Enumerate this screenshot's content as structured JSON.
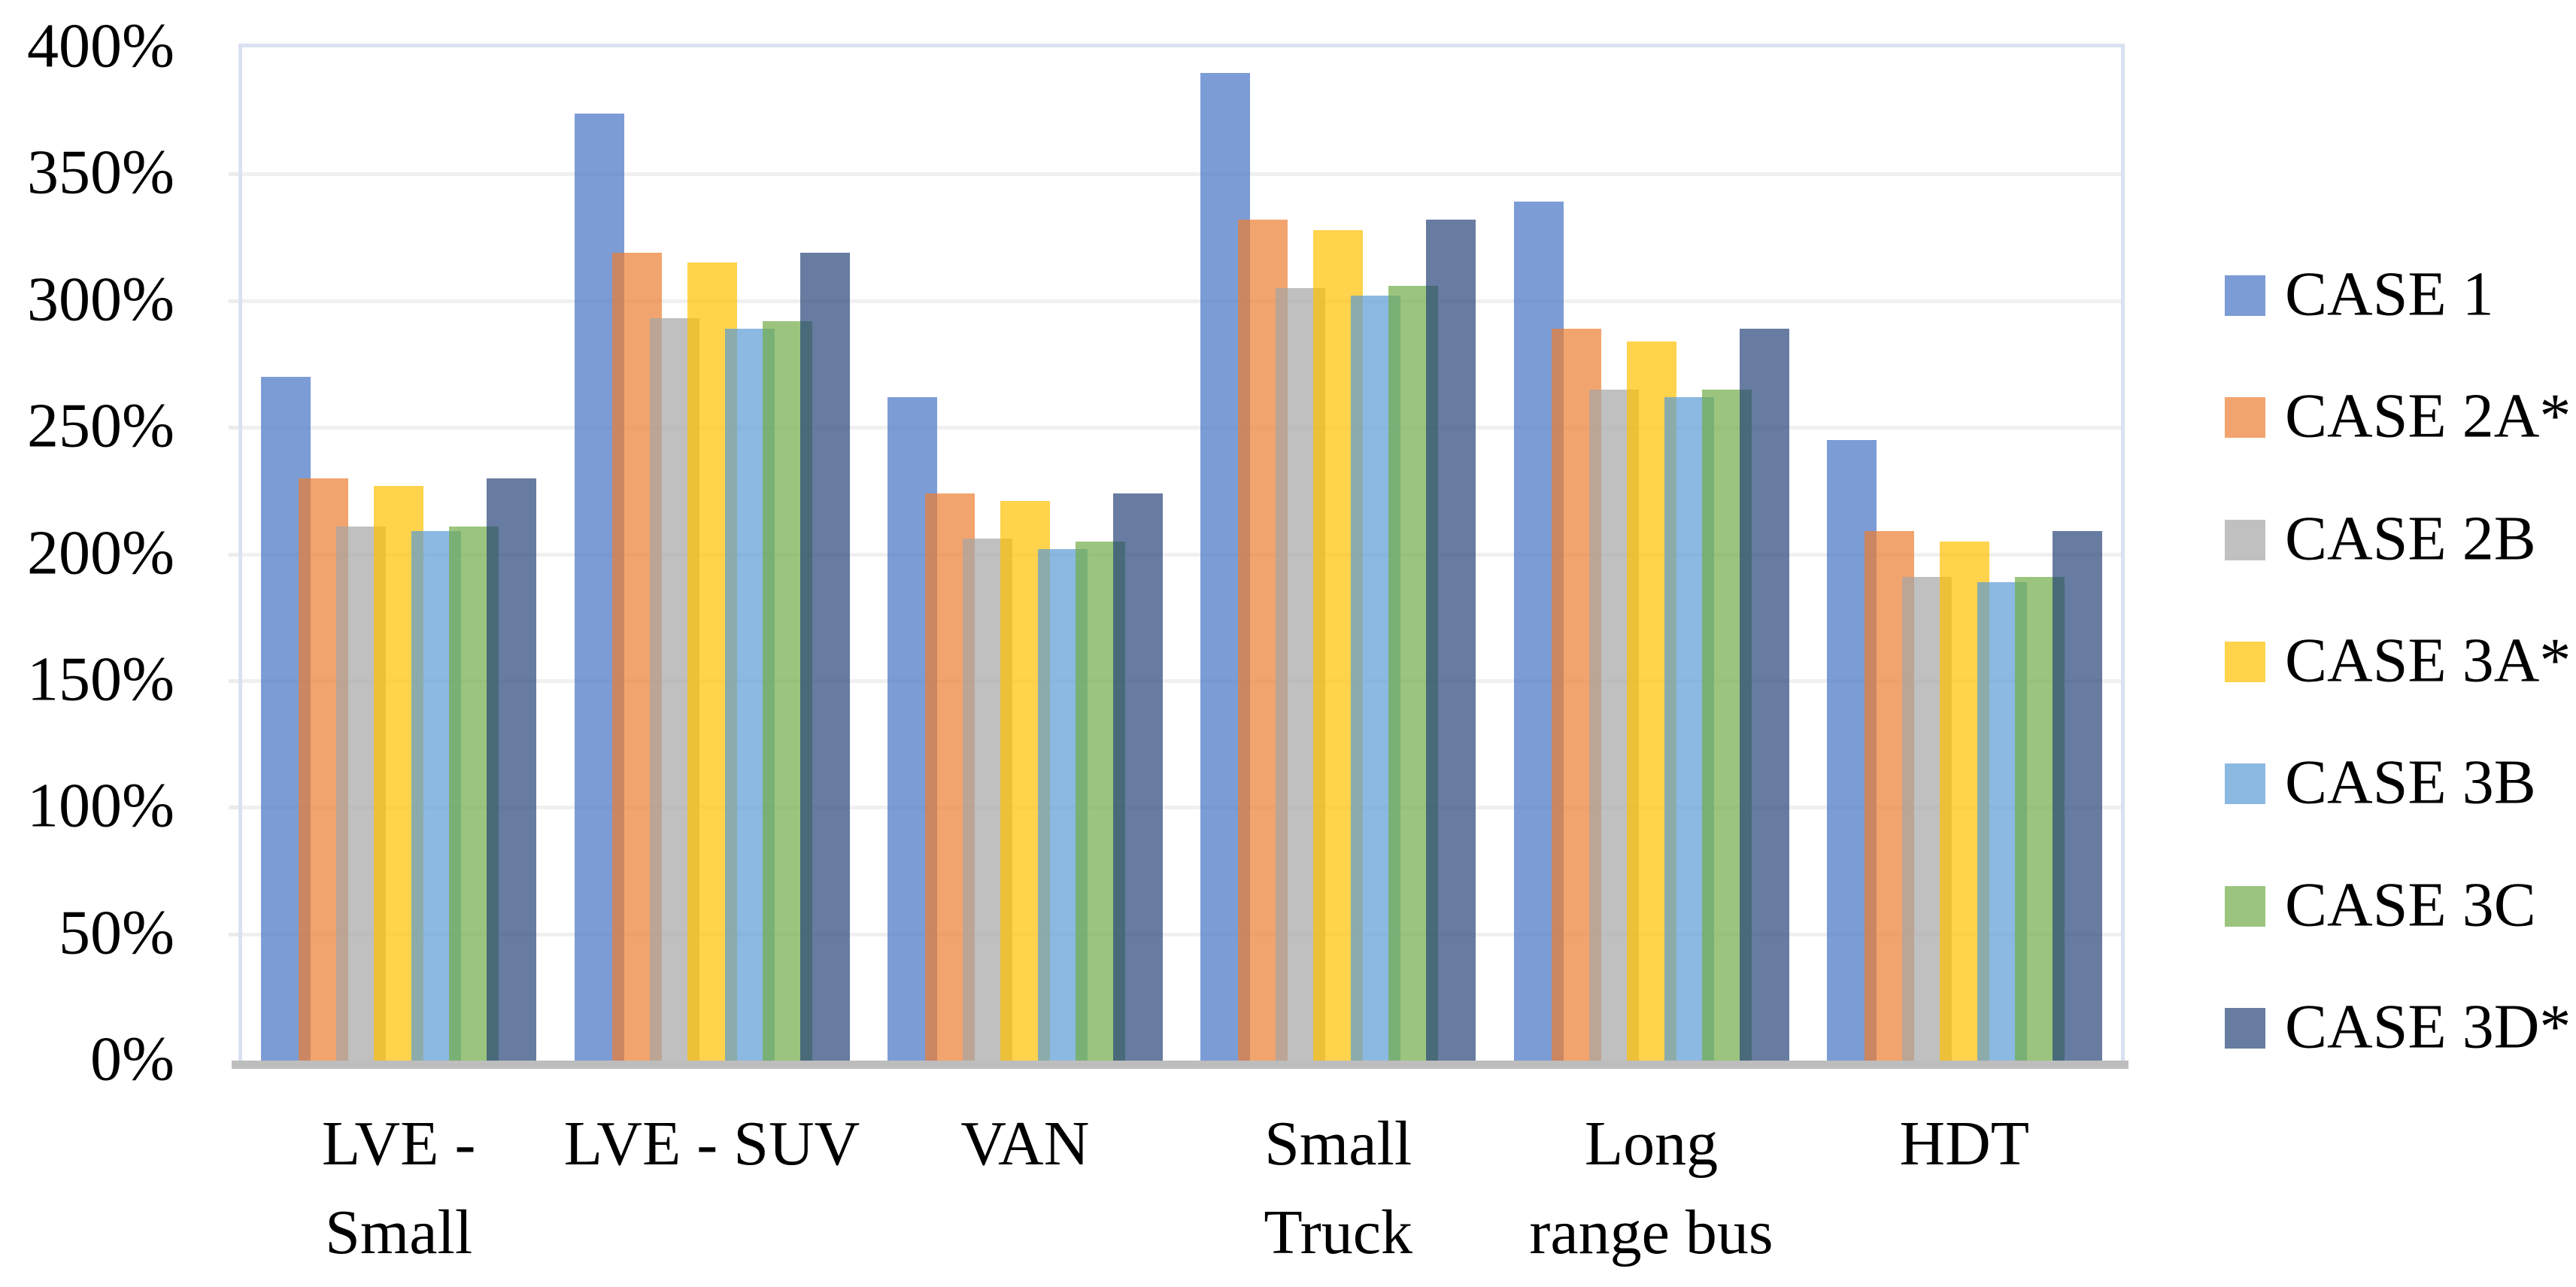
{
  "chart_data": {
    "type": "bar",
    "title": "",
    "categories": [
      "LVE - Small",
      "LVE - SUV",
      "VAN",
      "Small Truck",
      "Long range bus",
      "HDT"
    ],
    "category_lines": [
      [
        "LVE -",
        "Small"
      ],
      [
        "LVE - SUV"
      ],
      [
        "VAN"
      ],
      [
        "Small",
        "Truck"
      ],
      [
        "Long",
        "range bus"
      ],
      [
        "HDT"
      ]
    ],
    "series": [
      {
        "name": "CASE 1",
        "color": "#4472C4",
        "values": [
          270,
          374,
          262,
          390,
          339,
          245
        ]
      },
      {
        "name": "CASE 2A*",
        "color": "#ED7D31",
        "values": [
          230,
          319,
          224,
          332,
          289,
          209
        ]
      },
      {
        "name": "CASE 2B",
        "color": "#A5A5A5",
        "values": [
          211,
          293,
          206,
          305,
          265,
          191
        ]
      },
      {
        "name": "CASE 3A*",
        "color": "#FFC000",
        "values": [
          227,
          315,
          221,
          328,
          284,
          205
        ]
      },
      {
        "name": "CASE 3B",
        "color": "#5B9BD5",
        "values": [
          209,
          289,
          202,
          302,
          262,
          189
        ]
      },
      {
        "name": "CASE 3C",
        "color": "#70AD47",
        "values": [
          211,
          292,
          205,
          306,
          265,
          191
        ]
      },
      {
        "name": "CASE 3D*",
        "color": "#264478",
        "values": [
          230,
          319,
          224,
          332,
          289,
          209
        ]
      }
    ],
    "y_axis": {
      "min": 0,
      "max": 400,
      "step": 50,
      "format": "percent",
      "tick_labels": [
        "400%",
        "350%",
        "300%",
        "250%",
        "200%",
        "150%",
        "100%",
        "50%",
        "0%"
      ]
    },
    "legend_position": "right",
    "grid": true,
    "bar_opacity": 0.7,
    "colors": {
      "background": "#FFFFFF",
      "gridline": "#F0F0F0",
      "plot_border": "#D9E1F2",
      "axis_line": "#BDBDBD",
      "text": "#000000"
    }
  }
}
